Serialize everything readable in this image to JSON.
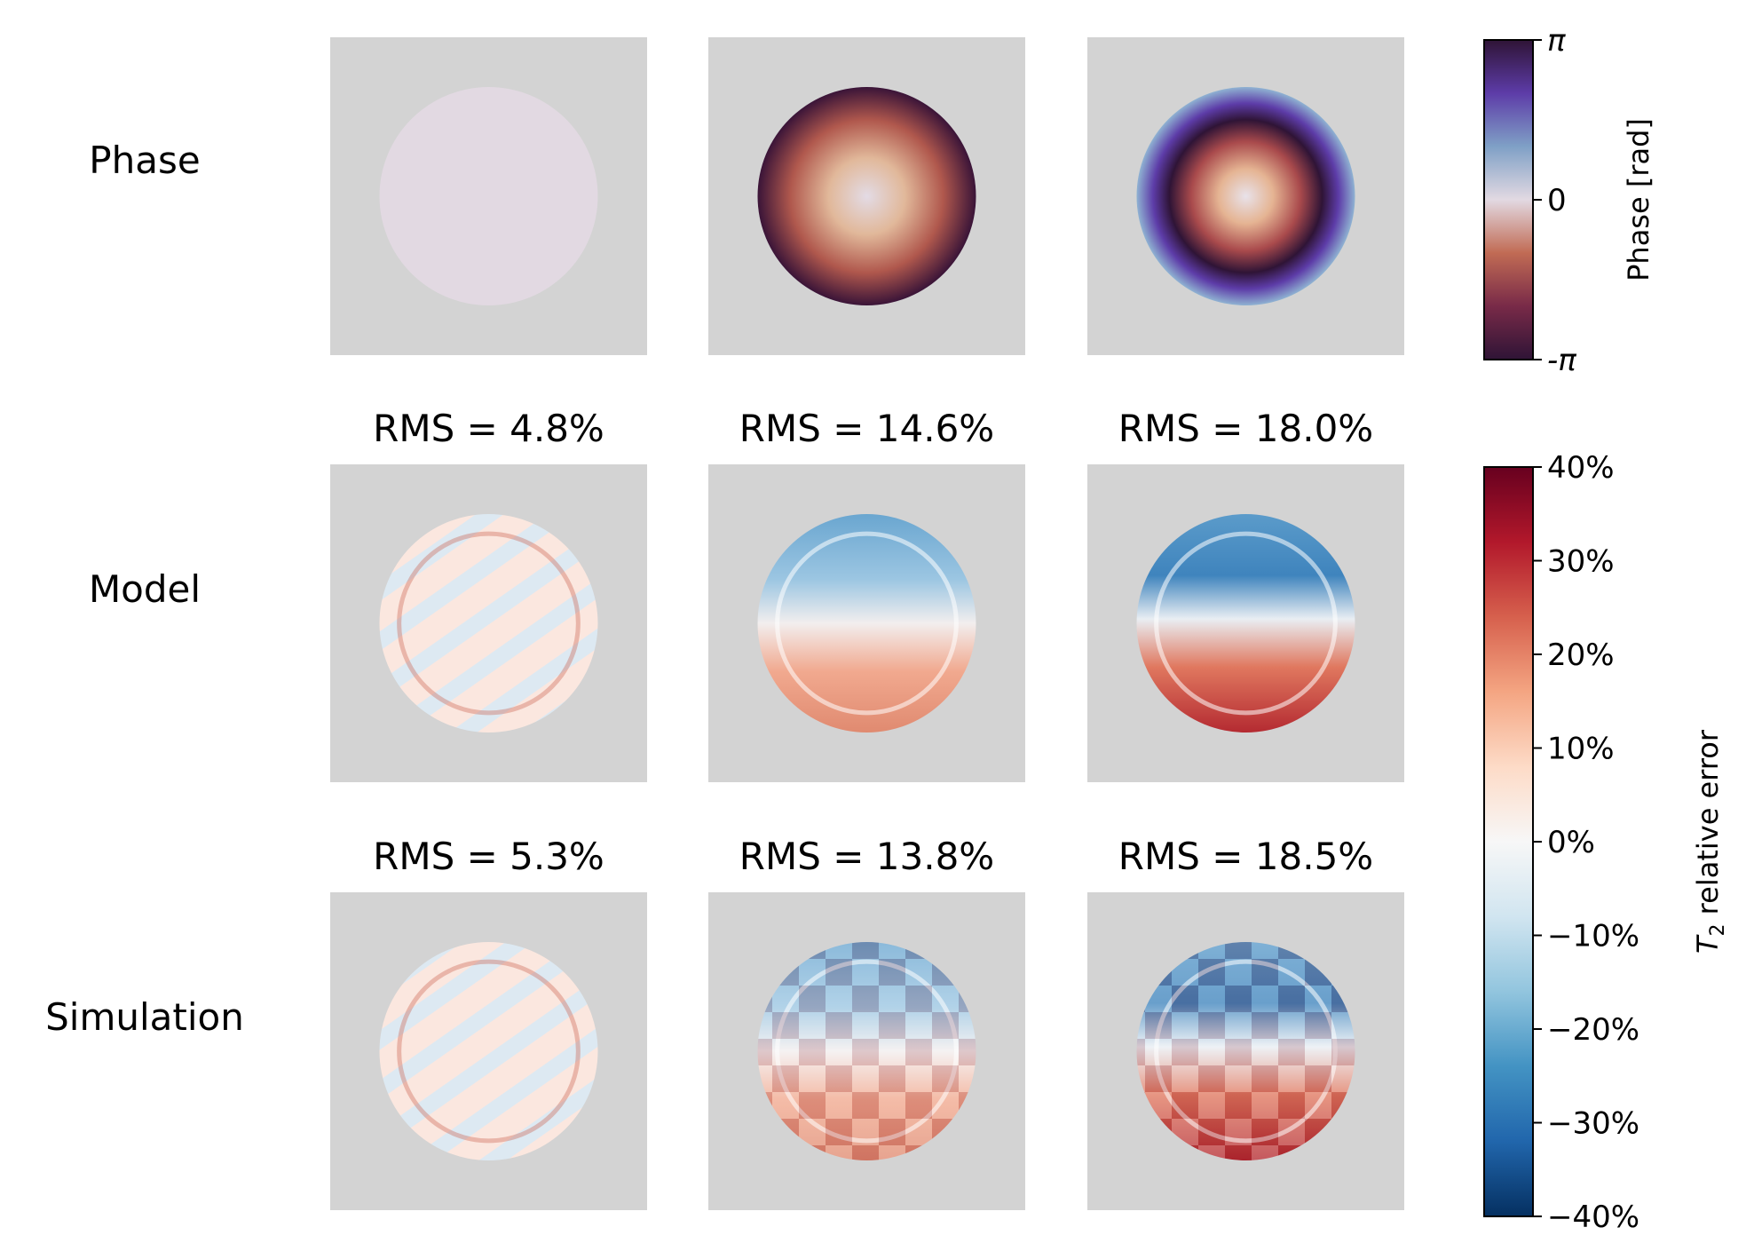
{
  "figure": {
    "rows": [
      {
        "label": "Phase",
        "panels": [
          {
            "kind": "phase",
            "rms": "",
            "profile": "flat"
          },
          {
            "kind": "phase",
            "rms": "",
            "profile": "quadratic"
          },
          {
            "kind": "phase",
            "rms": "",
            "profile": "wrapped"
          }
        ]
      },
      {
        "label": "Model",
        "panels": [
          {
            "kind": "error",
            "rms": "RMS = 4.8%",
            "pattern": "stripes"
          },
          {
            "kind": "error",
            "rms": "RMS = 14.6%",
            "pattern": "vertical-gradient"
          },
          {
            "kind": "error",
            "rms": "RMS = 18.0%",
            "pattern": "vertical-gradient-strong"
          }
        ]
      },
      {
        "label": "Simulation",
        "panels": [
          {
            "kind": "error",
            "rms": "RMS = 5.3%",
            "pattern": "stripes"
          },
          {
            "kind": "error",
            "rms": "RMS = 13.8%",
            "pattern": "vertical-gradient-checker"
          },
          {
            "kind": "error",
            "rms": "RMS = 18.5%",
            "pattern": "vertical-gradient-checker-strong"
          }
        ]
      }
    ],
    "background_color": "#d3d3d3",
    "phase_colorbar": {
      "label": "Phase [rad]",
      "ticks": [
        "π",
        "0",
        "-π"
      ],
      "colormap": "twilight_shifted",
      "colors": [
        "#2f1436",
        "#782a48",
        "#c16b54",
        "#e2d9e2",
        "#7fa0c6",
        "#5d3ca8",
        "#2f1436"
      ]
    },
    "error_colorbar": {
      "label_symbol": "T",
      "label_subscript": "2",
      "label_rest": " relative error",
      "ticks": [
        "40%",
        "30%",
        "20%",
        "10%",
        "0%",
        "−10%",
        "−20%",
        "−30%",
        "−40%"
      ],
      "range": [
        -40,
        40
      ],
      "colormap": "RdBu_r",
      "colors": [
        "#053061",
        "#2166ac",
        "#4393c3",
        "#92c5de",
        "#d1e5f0",
        "#f7f7f7",
        "#fddbc7",
        "#f4a582",
        "#d6604d",
        "#b2182b",
        "#67001f"
      ]
    }
  },
  "chart_data": {
    "type": "heatmap",
    "grid": "3x3",
    "row_labels": [
      "Phase",
      "Model",
      "Simulation"
    ],
    "rms": {
      "Model": [
        4.8,
        14.6,
        18.0
      ],
      "Simulation": [
        5.3,
        13.8,
        18.5
      ]
    },
    "phase_range": [
      "-π",
      "π"
    ],
    "error_range_percent": [
      -40,
      40
    ]
  }
}
